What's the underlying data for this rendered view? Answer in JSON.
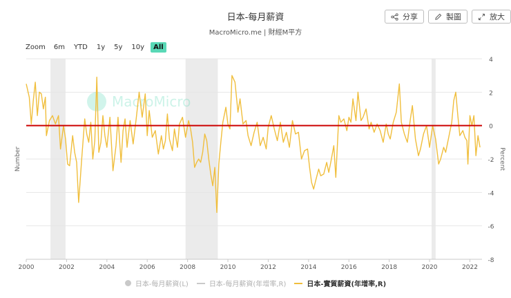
{
  "header": {
    "title": "日本-每月薪資",
    "subtitle": "MacroMicro.me | 財經M平方"
  },
  "actions": [
    {
      "label": "分享",
      "icon": "share-icon"
    },
    {
      "label": "製圖",
      "icon": "pencil-icon"
    },
    {
      "label": "放大",
      "icon": "expand-icon"
    }
  ],
  "zoom": {
    "label": "Zoom",
    "options": [
      "6m",
      "YTD",
      "1y",
      "5y",
      "10y",
      "All"
    ],
    "active": "All"
  },
  "watermark": "MacroMicro",
  "colors": {
    "series": "#f0be3c",
    "zero_line": "#cc0000",
    "recession": "#ebebeb",
    "grid": "#e6e6e6",
    "accent": "#59d8b6"
  },
  "chart_data": {
    "type": "line",
    "title": "日本-每月薪資",
    "xlabel": "",
    "ylabel_left": "Number",
    "ylabel_right": "Percent",
    "x_range": [
      2000.0,
      2022.6
    ],
    "ylim": [
      -8,
      4
    ],
    "y_ticks": [
      4,
      2,
      0,
      -2,
      -4,
      -6,
      -8
    ],
    "x_ticks": [
      2000,
      2002,
      2004,
      2006,
      2008,
      2010,
      2012,
      2014,
      2016,
      2018,
      2020,
      2022
    ],
    "x_tick_labels": [
      "2000",
      "2002",
      "2004",
      "2006",
      "2008",
      "2010",
      "2012",
      "2014",
      "2016",
      "2018",
      "2020",
      "2022"
    ],
    "zero_line": 0,
    "recession_bands": [
      [
        2001.2,
        2001.95
      ],
      [
        2007.9,
        2009.5
      ],
      [
        2020.1,
        2020.3
      ]
    ],
    "legend": [
      {
        "name": "日本-每月薪資(L)",
        "visible": false,
        "marker": "dot"
      },
      {
        "name": "日本-每月薪資(年增率,R)",
        "visible": false,
        "marker": "line"
      },
      {
        "name": "日本-實質薪資(年增率,R)",
        "visible": true,
        "marker": "line"
      }
    ],
    "series": [
      {
        "name": "日本-實質薪資(年增率,R)",
        "axis": "right",
        "points": [
          [
            2000.0,
            2.5
          ],
          [
            2000.15,
            1.7
          ],
          [
            2000.25,
            0.1
          ],
          [
            2000.35,
            1.5
          ],
          [
            2000.45,
            2.6
          ],
          [
            2000.55,
            0.6
          ],
          [
            2000.65,
            2.0
          ],
          [
            2000.75,
            1.9
          ],
          [
            2000.85,
            1.0
          ],
          [
            2000.95,
            1.7
          ],
          [
            2001.0,
            -0.6
          ],
          [
            2001.15,
            0.3
          ],
          [
            2001.3,
            0.6
          ],
          [
            2001.45,
            0.1
          ],
          [
            2001.6,
            0.6
          ],
          [
            2001.7,
            -1.4
          ],
          [
            2001.85,
            0.0
          ],
          [
            2001.95,
            -0.8
          ],
          [
            2002.05,
            -2.3
          ],
          [
            2002.15,
            -2.4
          ],
          [
            2002.3,
            -0.6
          ],
          [
            2002.4,
            -1.6
          ],
          [
            2002.5,
            -2.2
          ],
          [
            2002.6,
            -4.6
          ],
          [
            2002.75,
            -2.0
          ],
          [
            2002.9,
            0.4
          ],
          [
            2003.0,
            -0.5
          ],
          [
            2003.1,
            -1.0
          ],
          [
            2003.2,
            0.2
          ],
          [
            2003.3,
            -2.0
          ],
          [
            2003.4,
            -0.9
          ],
          [
            2003.5,
            2.9
          ],
          [
            2003.6,
            -1.6
          ],
          [
            2003.7,
            -1.0
          ],
          [
            2003.8,
            0.6
          ],
          [
            2003.9,
            -0.6
          ],
          [
            2004.0,
            -1.3
          ],
          [
            2004.15,
            0.5
          ],
          [
            2004.3,
            -2.7
          ],
          [
            2004.45,
            -1.2
          ],
          [
            2004.55,
            0.5
          ],
          [
            2004.7,
            -2.2
          ],
          [
            2004.8,
            -0.3
          ],
          [
            2004.9,
            0.4
          ],
          [
            2005.0,
            -1.3
          ],
          [
            2005.15,
            0.3
          ],
          [
            2005.3,
            -1.1
          ],
          [
            2005.45,
            0.4
          ],
          [
            2005.6,
            2.0
          ],
          [
            2005.75,
            0.5
          ],
          [
            2005.9,
            1.9
          ],
          [
            2006.0,
            -0.6
          ],
          [
            2006.1,
            0.9
          ],
          [
            2006.25,
            -0.7
          ],
          [
            2006.4,
            -0.3
          ],
          [
            2006.55,
            -1.7
          ],
          [
            2006.7,
            -0.6
          ],
          [
            2006.8,
            -1.4
          ],
          [
            2006.9,
            -0.9
          ],
          [
            2007.0,
            0.7
          ],
          [
            2007.1,
            -0.8
          ],
          [
            2007.25,
            -1.5
          ],
          [
            2007.35,
            -0.2
          ],
          [
            2007.5,
            -1.3
          ],
          [
            2007.6,
            0.1
          ],
          [
            2007.75,
            0.5
          ],
          [
            2007.9,
            -0.7
          ],
          [
            2008.05,
            0.3
          ],
          [
            2008.15,
            -0.2
          ],
          [
            2008.25,
            -1.0
          ],
          [
            2008.35,
            -2.5
          ],
          [
            2008.45,
            -2.2
          ],
          [
            2008.55,
            -2.0
          ],
          [
            2008.65,
            -2.2
          ],
          [
            2008.75,
            -1.6
          ],
          [
            2008.85,
            -0.5
          ],
          [
            2008.95,
            -0.9
          ],
          [
            2009.05,
            -2.0
          ],
          [
            2009.15,
            -2.9
          ],
          [
            2009.25,
            -3.6
          ],
          [
            2009.35,
            -2.5
          ],
          [
            2009.45,
            -5.2
          ],
          [
            2009.55,
            -2.3
          ],
          [
            2009.65,
            -1.0
          ],
          [
            2009.75,
            0.2
          ],
          [
            2009.9,
            1.1
          ],
          [
            2010.0,
            0.1
          ],
          [
            2010.1,
            -0.2
          ],
          [
            2010.2,
            3.0
          ],
          [
            2010.35,
            2.6
          ],
          [
            2010.5,
            0.8
          ],
          [
            2010.6,
            1.6
          ],
          [
            2010.75,
            0.1
          ],
          [
            2010.9,
            0.3
          ],
          [
            2011.0,
            -0.6
          ],
          [
            2011.15,
            -1.2
          ],
          [
            2011.3,
            -0.4
          ],
          [
            2011.45,
            0.2
          ],
          [
            2011.6,
            -1.2
          ],
          [
            2011.75,
            -0.7
          ],
          [
            2011.9,
            -1.4
          ],
          [
            2012.0,
            -0.1
          ],
          [
            2012.15,
            0.6
          ],
          [
            2012.3,
            -0.2
          ],
          [
            2012.45,
            -0.9
          ],
          [
            2012.6,
            0.2
          ],
          [
            2012.75,
            -1.0
          ],
          [
            2012.9,
            -0.4
          ],
          [
            2013.05,
            -1.3
          ],
          [
            2013.2,
            0.3
          ],
          [
            2013.35,
            -0.5
          ],
          [
            2013.5,
            -0.4
          ],
          [
            2013.65,
            -2.0
          ],
          [
            2013.8,
            -1.5
          ],
          [
            2013.95,
            -1.4
          ],
          [
            2014.05,
            -2.5
          ],
          [
            2014.15,
            -3.4
          ],
          [
            2014.25,
            -3.8
          ],
          [
            2014.35,
            -3.3
          ],
          [
            2014.5,
            -2.6
          ],
          [
            2014.6,
            -3.0
          ],
          [
            2014.75,
            -2.9
          ],
          [
            2014.9,
            -2.2
          ],
          [
            2015.0,
            -2.8
          ],
          [
            2015.1,
            -2.2
          ],
          [
            2015.25,
            -1.2
          ],
          [
            2015.35,
            -3.1
          ],
          [
            2015.5,
            0.6
          ],
          [
            2015.6,
            0.2
          ],
          [
            2015.75,
            0.4
          ],
          [
            2015.9,
            -0.3
          ],
          [
            2016.0,
            0.5
          ],
          [
            2016.1,
            0.2
          ],
          [
            2016.2,
            1.6
          ],
          [
            2016.35,
            0.3
          ],
          [
            2016.45,
            2.0
          ],
          [
            2016.6,
            0.3
          ],
          [
            2016.7,
            0.5
          ],
          [
            2016.85,
            1.0
          ],
          [
            2017.0,
            -0.2
          ],
          [
            2017.1,
            0.2
          ],
          [
            2017.25,
            -0.4
          ],
          [
            2017.4,
            0.1
          ],
          [
            2017.55,
            -0.3
          ],
          [
            2017.7,
            -1.0
          ],
          [
            2017.85,
            0.1
          ],
          [
            2017.95,
            -0.5
          ],
          [
            2018.05,
            -0.8
          ],
          [
            2018.2,
            0.2
          ],
          [
            2018.35,
            0.8
          ],
          [
            2018.5,
            2.5
          ],
          [
            2018.6,
            0.2
          ],
          [
            2018.75,
            -0.5
          ],
          [
            2018.9,
            -1.0
          ],
          [
            2019.05,
            0.4
          ],
          [
            2019.15,
            1.2
          ],
          [
            2019.3,
            -0.8
          ],
          [
            2019.45,
            -1.8
          ],
          [
            2019.55,
            -1.4
          ],
          [
            2019.7,
            -0.5
          ],
          [
            2019.85,
            0.0
          ],
          [
            2020.0,
            -1.3
          ],
          [
            2020.15,
            0.0
          ],
          [
            2020.3,
            -0.8
          ],
          [
            2020.45,
            -2.3
          ],
          [
            2020.55,
            -2.0
          ],
          [
            2020.7,
            -1.3
          ],
          [
            2020.8,
            -1.6
          ],
          [
            2020.95,
            -0.7
          ],
          [
            2021.1,
            0.2
          ],
          [
            2021.2,
            1.5
          ],
          [
            2021.3,
            2.0
          ],
          [
            2021.4,
            0.6
          ],
          [
            2021.5,
            -0.6
          ],
          [
            2021.65,
            -0.3
          ],
          [
            2021.75,
            -0.7
          ],
          [
            2021.85,
            -0.9
          ],
          [
            2021.9,
            -2.3
          ],
          [
            2022.0,
            0.6
          ],
          [
            2022.1,
            0.0
          ],
          [
            2022.2,
            0.6
          ],
          [
            2022.3,
            -1.8
          ],
          [
            2022.4,
            -0.6
          ],
          [
            2022.5,
            -1.3
          ]
        ]
      }
    ]
  }
}
